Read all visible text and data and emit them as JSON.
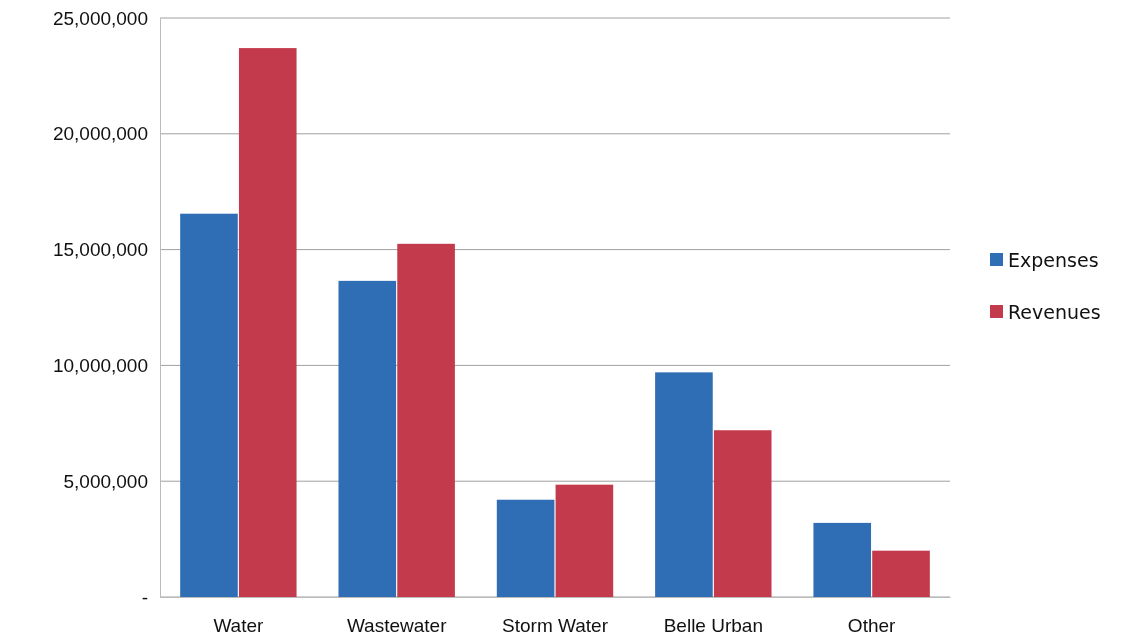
{
  "chart_data": {
    "type": "bar",
    "categories": [
      "Water",
      "Wastewater",
      "Storm Water",
      "Belle Urban",
      "Other"
    ],
    "series": [
      {
        "name": "Expenses",
        "color": "#2f6db5",
        "values": [
          16550000,
          13650000,
          4200000,
          9700000,
          3200000
        ]
      },
      {
        "name": "Revenues",
        "color": "#c23a4c",
        "values": [
          23700000,
          15250000,
          4850000,
          7200000,
          2000000
        ]
      }
    ],
    "ylim": [
      0,
      25000000
    ],
    "yticks": [
      {
        "value": 0,
        "label": "-"
      },
      {
        "value": 5000000,
        "label": "5,000,000"
      },
      {
        "value": 10000000,
        "label": "10,000,000"
      },
      {
        "value": 15000000,
        "label": "15,000,000"
      },
      {
        "value": 20000000,
        "label": "20,000,000"
      },
      {
        "value": 25000000,
        "label": "25,000,000"
      }
    ],
    "grid": "y",
    "legend": "right"
  }
}
